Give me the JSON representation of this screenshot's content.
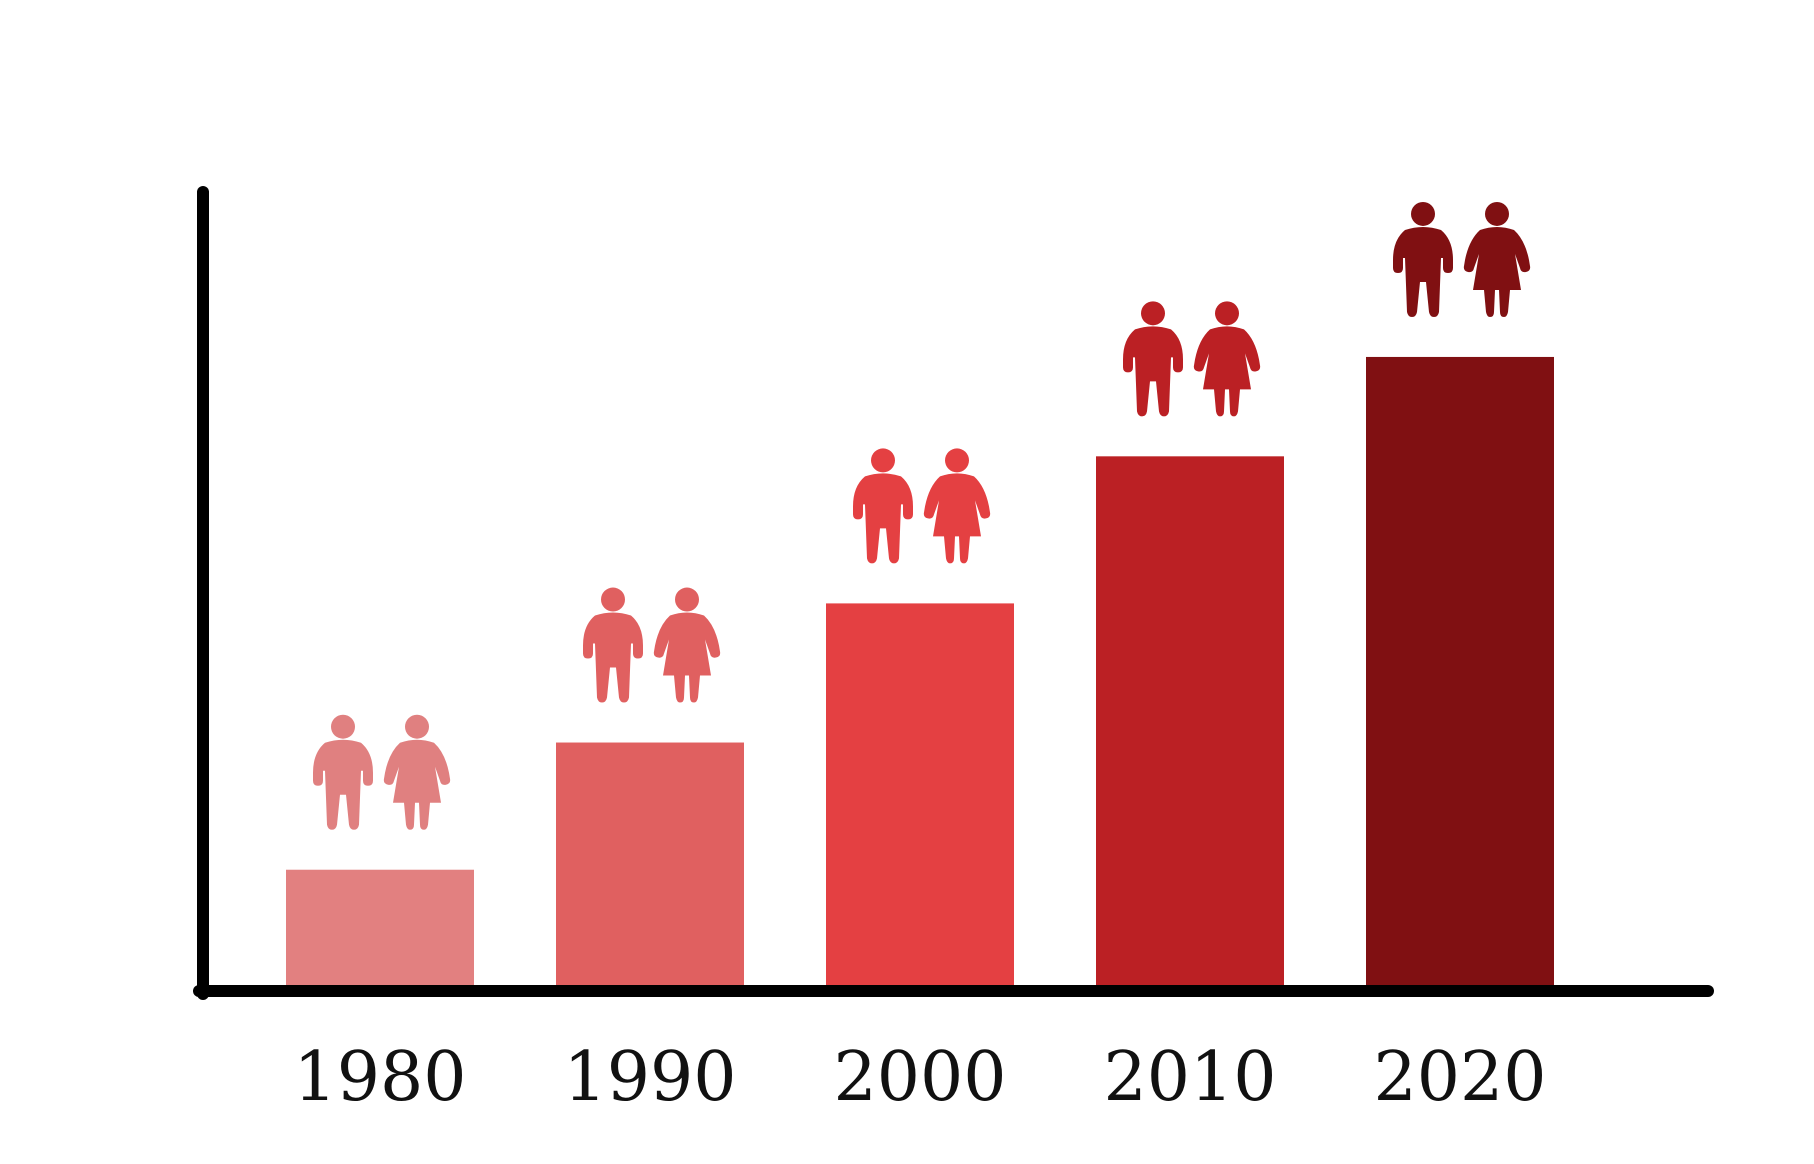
{
  "chart_data": {
    "type": "bar",
    "categories": [
      "1980",
      "1990",
      "2000",
      "2010",
      "2020"
    ],
    "values": [
      14.5,
      30.5,
      48,
      66.5,
      79
    ],
    "ylim": [
      0,
      100
    ],
    "title": "",
    "xlabel": "",
    "ylabel": "",
    "grid": false,
    "legend": "none",
    "colors": [
      "#e28080",
      "#e06060",
      "#e44042",
      "#bb2024",
      "#801012"
    ],
    "icon_colors": [
      "#e08080",
      "#e06060",
      "#e44042",
      "#bb2024",
      "#801012"
    ],
    "icons": [
      "man-icon",
      "woman-icon"
    ],
    "axis_color": "#000000"
  }
}
